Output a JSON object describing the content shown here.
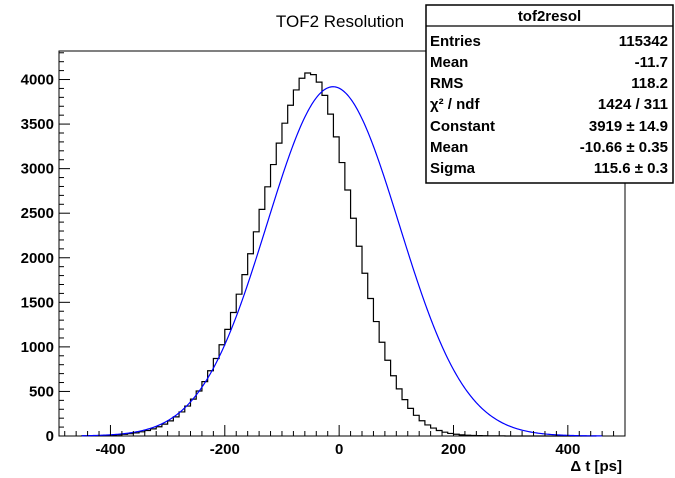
{
  "chart_data": {
    "type": "bar",
    "title": "TOF2 Resolution",
    "xlabel": "Δ t  [ps]",
    "ylabel": "",
    "xlim": [
      -490,
      500
    ],
    "ylim": [
      0,
      4320
    ],
    "xticks": [
      -400,
      -200,
      0,
      200,
      400
    ],
    "yticks": [
      0,
      500,
      1000,
      1500,
      2000,
      2500,
      3000,
      3500,
      4000
    ],
    "grid": false,
    "histogram": {
      "name": "tof2resol",
      "bin_edges_start": -450,
      "bin_width": 10,
      "values": [
        2,
        3,
        4,
        5,
        7,
        10,
        14,
        19,
        26,
        35,
        47,
        62,
        80,
        104,
        133,
        170,
        215,
        270,
        336,
        414,
        505,
        610,
        732,
        870,
        1024,
        1196,
        1386,
        1591,
        1811,
        2045,
        2291,
        2543,
        2796,
        3046,
        3286,
        3510,
        3711,
        3883,
        4014,
        4073,
        4055,
        3971,
        3822,
        3612,
        3356,
        3068,
        2760,
        2443,
        2129,
        1826,
        1543,
        1284,
        1052,
        850,
        676,
        529,
        408,
        310,
        232,
        171,
        124,
        89,
        62,
        43,
        29,
        20,
        13,
        9,
        6,
        4,
        3,
        2,
        1,
        1,
        0,
        0,
        0,
        0,
        0,
        0,
        0,
        0,
        0,
        0,
        0,
        0,
        0,
        0,
        0,
        0
      ]
    },
    "fit": {
      "name": "gaus",
      "constant": 3919,
      "mean": -10.66,
      "sigma": 115.6,
      "color": "#0000ff"
    },
    "stats_box": {
      "title": "tof2resol",
      "rows": [
        {
          "label": "Entries",
          "value": "115342"
        },
        {
          "label": "Mean",
          "value": "-11.7"
        },
        {
          "label": "RMS",
          "value": "118.2"
        },
        {
          "label": "χ² / ndf",
          "value": "1424 / 311"
        },
        {
          "label": "Constant",
          "value": "3919 ± 14.9"
        },
        {
          "label": "Mean",
          "value": "-10.66 ± 0.35"
        },
        {
          "label": "Sigma",
          "value": "115.6 ± 0.3"
        }
      ]
    }
  }
}
